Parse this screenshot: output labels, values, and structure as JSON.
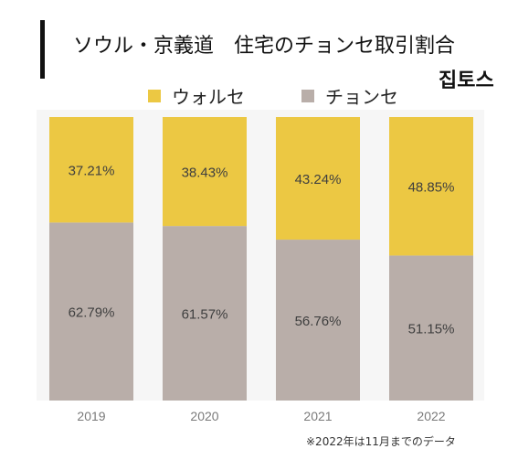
{
  "title": "ソウル・京義道　住宅のチョンセ取引割合",
  "logo": "집토스",
  "note": "※2022年は11月までのデータ",
  "colors": {
    "wolse": "#ecc843",
    "jeonse": "#b9aea9",
    "label": "#3f3f3f",
    "axis_label": "#7a7a7a"
  },
  "chart_data": {
    "type": "bar",
    "stacked": true,
    "categories": [
      "2019",
      "2020",
      "2021",
      "2022"
    ],
    "series": [
      {
        "name": "チョンセ",
        "values": [
          62.79,
          61.57,
          56.76,
          51.15
        ],
        "labels": [
          "62.79%",
          "61.57%",
          "56.76%",
          "51.15%"
        ]
      },
      {
        "name": "ウォルセ",
        "values": [
          37.21,
          38.43,
          43.24,
          48.85
        ],
        "labels": [
          "37.21%",
          "38.43%",
          "43.24%",
          "48.85%"
        ]
      }
    ],
    "ylim": [
      0,
      100
    ],
    "grid": false,
    "legend_position": "top"
  },
  "legend": [
    {
      "name": "ウォルセ",
      "color": "#ecc843"
    },
    {
      "name": "チョンセ",
      "color": "#b9aea9"
    }
  ]
}
